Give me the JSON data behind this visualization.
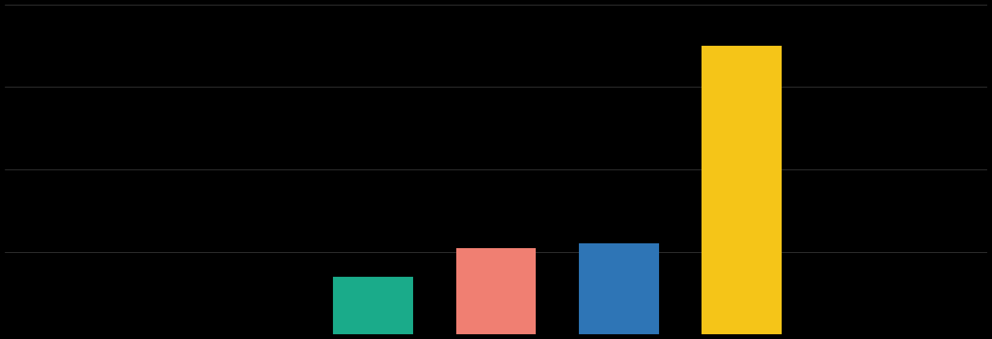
{
  "categories": [
    "",
    "",
    "",
    ""
  ],
  "values": [
    14,
    21,
    22,
    70
  ],
  "bar_colors": [
    "#1aab8a",
    "#f07f72",
    "#2e75b6",
    "#f5c518"
  ],
  "background_color": "#000000",
  "text_color": "#ffffff",
  "grid_color": "#555555",
  "ylim": [
    0,
    80
  ],
  "yticks": [
    0,
    20,
    40,
    60,
    80
  ],
  "bar_width": 0.65,
  "figsize": [
    14.48,
    4.96
  ],
  "dpi": 100,
  "x_positions": [
    3,
    4,
    5,
    6
  ],
  "xlim": [
    0,
    8
  ]
}
